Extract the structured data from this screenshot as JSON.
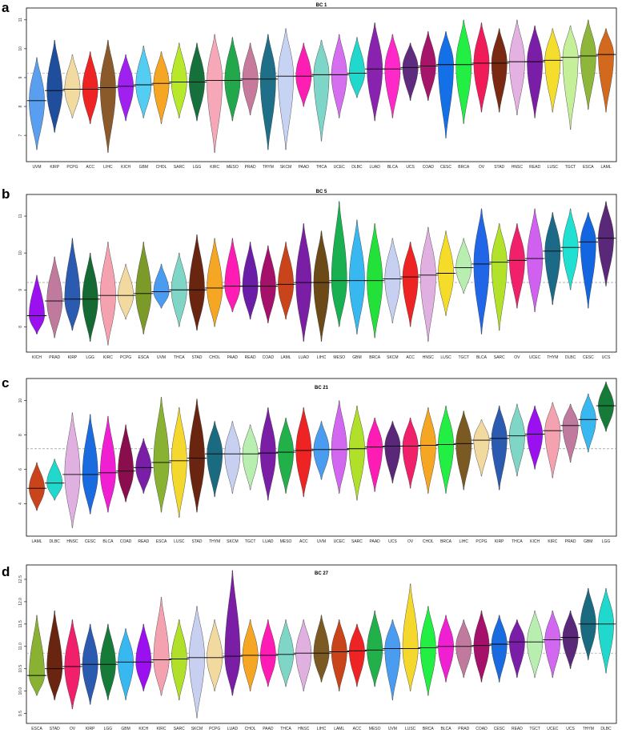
{
  "figure": {
    "panels": [
      {
        "letter": "a",
        "title": "BC 1"
      },
      {
        "letter": "b",
        "title": "BC 5"
      },
      {
        "letter": "c",
        "title": "BC 21"
      },
      {
        "letter": "d",
        "title": "BC 27"
      }
    ]
  },
  "chart_data": [
    {
      "type": "violin",
      "title": "BC 1",
      "xlabel": "",
      "ylabel": "",
      "ylim": [
        6.2,
        11.3
      ],
      "yticks": [
        7,
        8,
        9,
        10,
        11
      ],
      "reference_line": 9.15,
      "grid": false,
      "categories": [
        "UVM",
        "KIRP",
        "PCPG",
        "ACC",
        "LIHC",
        "KICH",
        "GBM",
        "CHOL",
        "SARC",
        "LGG",
        "KIRC",
        "MESO",
        "PRAD",
        "THYM",
        "SKCM",
        "PAAD",
        "THCA",
        "UCEC",
        "DLBC",
        "LUAD",
        "BLCA",
        "UCS",
        "COAD",
        "CESC",
        "BRCA",
        "OV",
        "STAD",
        "HNSC",
        "READ",
        "LUSC",
        "TGCT",
        "ESCA",
        "LAML"
      ],
      "medians": [
        8.2,
        8.55,
        8.6,
        8.6,
        8.65,
        8.7,
        8.75,
        8.8,
        8.85,
        8.85,
        8.9,
        8.9,
        8.95,
        8.95,
        9.05,
        9.05,
        9.1,
        9.1,
        9.15,
        9.3,
        9.3,
        9.35,
        9.4,
        9.45,
        9.45,
        9.5,
        9.5,
        9.55,
        9.55,
        9.6,
        9.7,
        9.75,
        9.8
      ],
      "mins": [
        6.5,
        7.1,
        7.6,
        7.4,
        6.4,
        7.5,
        7.6,
        7.4,
        7.6,
        7.5,
        6.4,
        7.5,
        7.7,
        6.5,
        6.5,
        8.0,
        6.8,
        7.6,
        8.3,
        7.5,
        7.6,
        8.2,
        8.2,
        6.9,
        7.4,
        7.8,
        7.8,
        7.7,
        7.6,
        7.8,
        7.2,
        7.9,
        7.8
      ],
      "maxs": [
        9.7,
        10.3,
        9.8,
        9.9,
        10.3,
        9.8,
        10.1,
        9.9,
        10.2,
        10.2,
        10.5,
        10.4,
        10.2,
        10.5,
        10.7,
        10.2,
        10.3,
        10.5,
        10.4,
        10.9,
        10.5,
        10.2,
        10.6,
        10.6,
        11.0,
        10.9,
        10.7,
        11.0,
        10.8,
        10.7,
        10.8,
        11.0,
        10.7
      ],
      "colors": [
        "#5a9ef0",
        "#1f4e9c",
        "#f2dba0",
        "#ee2424",
        "#8b5a2b",
        "#a020f0",
        "#54cdf2",
        "#f5a623",
        "#b8e82a",
        "#15703c",
        "#f7a8b8",
        "#22a84a",
        "#c77a9c",
        "#1e6f87",
        "#c7d3f3",
        "#ff1eb4",
        "#7ed6c8",
        "#d66ef0",
        "#20d9cc",
        "#8a22b0",
        "#ff28c8",
        "#5e2b7e",
        "#a5166a",
        "#1470e6",
        "#22ee44",
        "#f01c5a",
        "#7a2a12",
        "#e3b2e3",
        "#7a1ea8",
        "#f5dd2e",
        "#c6ef9a",
        "#8eb63a",
        "#d2691e"
      ]
    },
    {
      "type": "violin",
      "title": "BC 5",
      "xlabel": "",
      "ylabel": "",
      "ylim": [
        7.4,
        11.5
      ],
      "yticks": [
        8,
        9,
        10,
        11
      ],
      "reference_line": 9.2,
      "grid": false,
      "categories": [
        "KICH",
        "PRAD",
        "KIRP",
        "LGG",
        "KIRC",
        "PCPG",
        "ESCA",
        "UVM",
        "THCA",
        "STAD",
        "CHOL",
        "PAAD",
        "READ",
        "COAD",
        "LAML",
        "LUAD",
        "LIHC",
        "MESO",
        "GBM",
        "BRCA",
        "SKCM",
        "ACC",
        "HNSC",
        "LUSC",
        "TGCT",
        "BLCA",
        "SARC",
        "OV",
        "UCEC",
        "THYM",
        "DLBC",
        "CESC",
        "UCS"
      ],
      "medians": [
        8.3,
        8.7,
        8.75,
        8.75,
        8.85,
        8.85,
        8.9,
        8.95,
        9.0,
        9.0,
        9.05,
        9.1,
        9.1,
        9.1,
        9.15,
        9.2,
        9.2,
        9.25,
        9.25,
        9.25,
        9.3,
        9.35,
        9.4,
        9.45,
        9.6,
        9.7,
        9.75,
        9.8,
        9.85,
        10.05,
        10.15,
        10.3,
        10.4
      ],
      "mins": [
        7.8,
        7.7,
        7.9,
        7.6,
        7.5,
        8.2,
        7.8,
        8.5,
        8.0,
        7.9,
        8.0,
        8.4,
        8.2,
        8.1,
        8.2,
        7.6,
        7.6,
        8.0,
        7.8,
        7.7,
        8.1,
        8.0,
        7.6,
        8.3,
        8.9,
        7.8,
        7.9,
        8.5,
        8.4,
        8.6,
        9.0,
        8.5,
        9.1
      ],
      "maxs": [
        9.4,
        9.9,
        10.4,
        10.0,
        10.3,
        9.7,
        10.3,
        9.7,
        10.0,
        10.5,
        10.4,
        10.4,
        10.3,
        10.2,
        10.3,
        10.8,
        10.6,
        11.4,
        10.9,
        10.8,
        10.4,
        10.3,
        10.7,
        10.6,
        10.4,
        11.2,
        10.8,
        10.8,
        11.2,
        11.1,
        11.2,
        11.1,
        11.4
      ],
      "colors": [
        "#9a10ee",
        "#c07a9e",
        "#2a5bb0",
        "#156a34",
        "#f4a2b0",
        "#f2d9a0",
        "#7c9a28",
        "#4a9cf0",
        "#7fd6c6",
        "#6a2510",
        "#f5a623",
        "#ff1cb4",
        "#6a1ea8",
        "#a5106a",
        "#c9441a",
        "#7a1ea6",
        "#6b4a18",
        "#18b050",
        "#38b8f0",
        "#22e23a",
        "#c7d0f0",
        "#ee2424",
        "#e0b0e0",
        "#f5dc28",
        "#b8efb0",
        "#2266e8",
        "#b2e22a",
        "#f0206a",
        "#d060f0",
        "#1a6a88",
        "#20e0d2",
        "#1466e0",
        "#5a2878"
      ]
    },
    {
      "type": "violin",
      "title": "BC 21",
      "xlabel": "",
      "ylabel": "",
      "ylim": [
        2.3,
        11.1
      ],
      "yticks": [
        4,
        6,
        8,
        10
      ],
      "reference_line": 7.2,
      "grid": false,
      "categories": [
        "LAML",
        "DLBC",
        "HNSC",
        "CESC",
        "BLCA",
        "COAD",
        "READ",
        "ESCA",
        "LUSC",
        "STAD",
        "THYM",
        "SKCM",
        "TGCT",
        "LUAD",
        "MESO",
        "ACC",
        "UVM",
        "UCEC",
        "SARC",
        "PAAD",
        "UCS",
        "OV",
        "CHOL",
        "BRCA",
        "LIHC",
        "PCPG",
        "KIRP",
        "THCA",
        "KICH",
        "KIRC",
        "PRAD",
        "GBM",
        "LGG"
      ],
      "medians": [
        4.9,
        5.2,
        5.7,
        5.7,
        5.8,
        5.9,
        6.1,
        6.4,
        6.5,
        6.65,
        6.9,
        6.9,
        6.9,
        6.95,
        7.0,
        7.1,
        7.15,
        7.15,
        7.2,
        7.3,
        7.35,
        7.35,
        7.4,
        7.45,
        7.5,
        7.7,
        7.8,
        7.95,
        8.05,
        8.25,
        8.55,
        8.9,
        9.7
      ],
      "mins": [
        3.6,
        4.2,
        2.6,
        3.4,
        3.5,
        4.1,
        4.6,
        3.5,
        3.2,
        3.5,
        4.4,
        4.6,
        4.8,
        4.2,
        4.6,
        4.4,
        5.4,
        4.6,
        4.2,
        4.7,
        5.2,
        4.9,
        4.6,
        4.6,
        4.8,
        5.6,
        4.8,
        5.6,
        6.0,
        5.5,
        6.4,
        7.0,
        8.2
      ],
      "maxs": [
        6.4,
        6.6,
        9.3,
        9.2,
        9.1,
        8.6,
        7.8,
        10.2,
        9.6,
        10.1,
        8.8,
        8.8,
        8.6,
        9.6,
        9.0,
        9.6,
        8.8,
        10.0,
        9.7,
        9.0,
        8.8,
        9.0,
        9.6,
        9.7,
        9.4,
        8.9,
        9.7,
        9.8,
        9.7,
        9.9,
        9.8,
        10.4,
        11.1
      ],
      "colors": [
        "#c9441a",
        "#20d8cc",
        "#e0b0e0",
        "#1a6ae0",
        "#f020d2",
        "#8a0e4e",
        "#7a1ea8",
        "#8ab232",
        "#f5d82e",
        "#6a2510",
        "#1a6a80",
        "#c7d0f0",
        "#b8efb0",
        "#7a1ea6",
        "#22b04a",
        "#ee2424",
        "#4a9cf0",
        "#d268f0",
        "#b0e02a",
        "#ff1cb4",
        "#5a2878",
        "#f0206a",
        "#f5a623",
        "#22ee44",
        "#7a5a22",
        "#f2d9a0",
        "#2a5bb0",
        "#7fd6c6",
        "#9a10ee",
        "#f4a2b0",
        "#c07a9e",
        "#38b8f0",
        "#167a38"
      ]
    },
    {
      "type": "violin",
      "title": "BC 27",
      "xlabel": "",
      "ylabel": "",
      "ylim": [
        9.35,
        12.75
      ],
      "yticks": [
        9.5,
        10.0,
        10.5,
        11.0,
        11.5,
        12.0,
        12.5
      ],
      "reference_line": 10.85,
      "grid": false,
      "categories": [
        "ESCA",
        "STAD",
        "OV",
        "KIRP",
        "LGG",
        "GBM",
        "KICH",
        "KIRC",
        "SARC",
        "SKCM",
        "PCPG",
        "LUAD",
        "CHOL",
        "PAAD",
        "THCA",
        "HNSC",
        "LIHC",
        "LAML",
        "ACC",
        "MESO",
        "UVM",
        "LUSC",
        "BRCA",
        "BLCA",
        "PRAD",
        "COAD",
        "CESC",
        "READ",
        "TGCT",
        "UCEC",
        "UCS",
        "THYM",
        "DLBC"
      ],
      "medians": [
        10.35,
        10.5,
        10.55,
        10.6,
        10.6,
        10.65,
        10.65,
        10.7,
        10.72,
        10.75,
        10.75,
        10.78,
        10.8,
        10.8,
        10.82,
        10.85,
        10.85,
        10.88,
        10.9,
        10.92,
        10.95,
        10.95,
        10.97,
        11.0,
        11.0,
        11.02,
        11.05,
        11.1,
        11.1,
        11.15,
        11.2,
        11.5,
        11.5
      ],
      "mins": [
        9.9,
        9.8,
        9.6,
        9.7,
        9.8,
        9.8,
        10.0,
        9.9,
        9.8,
        9.4,
        10.0,
        9.9,
        10.0,
        10.1,
        10.1,
        10.0,
        10.2,
        10.0,
        10.1,
        10.1,
        9.8,
        10.0,
        9.9,
        10.2,
        10.3,
        10.2,
        10.2,
        10.3,
        10.3,
        10.3,
        10.5,
        10.7,
        10.4
      ],
      "maxs": [
        11.7,
        11.8,
        11.6,
        11.5,
        11.5,
        11.4,
        11.5,
        12.1,
        11.6,
        11.9,
        11.6,
        12.7,
        11.6,
        11.6,
        11.6,
        11.6,
        11.7,
        11.6,
        11.5,
        11.8,
        11.6,
        12.4,
        11.9,
        11.7,
        11.6,
        11.8,
        11.7,
        11.6,
        11.8,
        11.8,
        11.8,
        12.3,
        12.3
      ],
      "colors": [
        "#8ab232",
        "#6a2510",
        "#f0206a",
        "#2a5bb0",
        "#167a38",
        "#38b8f0",
        "#9a10ee",
        "#f4a2b0",
        "#b0e02a",
        "#c7d0f0",
        "#f2d9a0",
        "#7a1ea6",
        "#f5a623",
        "#ff1cb4",
        "#7fd6c6",
        "#e0b0e0",
        "#7a5a22",
        "#c9441a",
        "#ee2424",
        "#22b04a",
        "#4a9cf0",
        "#f5d82e",
        "#22ee44",
        "#f020d2",
        "#c07a9e",
        "#a5106a",
        "#1a6ae0",
        "#7a1ea8",
        "#b8efb0",
        "#d268f0",
        "#5a2878",
        "#1a6a80",
        "#20d8cc"
      ]
    }
  ]
}
